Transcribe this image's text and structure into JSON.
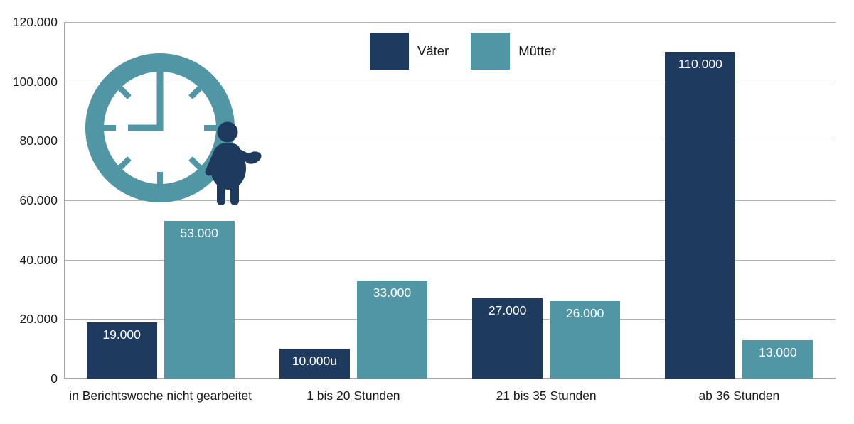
{
  "chart_data": {
    "type": "bar",
    "title": "",
    "categories": [
      "in Berichtswoche nicht gearbeitet",
      "1 bis 20 Stunden",
      "21 bis 35 Stunden",
      "ab 36 Stunden"
    ],
    "series": [
      {
        "name": "Väter",
        "color": "#1e3a5e",
        "values": [
          19000,
          10000,
          27000,
          110000
        ],
        "labels": [
          "19.000",
          "10.000u",
          "27.000",
          "110.000"
        ]
      },
      {
        "name": "Mütter",
        "color": "#5096a5",
        "values": [
          53000,
          33000,
          26000,
          13000
        ],
        "labels": [
          "53.000",
          "33.000",
          "26.000",
          "13.000"
        ]
      }
    ],
    "xlabel": "",
    "ylabel": "",
    "ylim": [
      0,
      120000
    ],
    "ytick_interval": 20000,
    "ytick_labels": [
      "0",
      "20.000",
      "40.000",
      "60.000",
      "80.000",
      "100.000",
      "120.000"
    ],
    "grid": "horizontal",
    "legend_position": "top-center",
    "bar_label_color": "#ffffff"
  },
  "legend": {
    "items": [
      {
        "label": "Väter",
        "color": "#1e3a5e"
      },
      {
        "label": "Mütter",
        "color": "#5096a5"
      }
    ]
  },
  "decoration": {
    "clock_time": "9:00",
    "clock_color": "#5096a5",
    "person_color": "#1e3a5e"
  },
  "colors": {
    "gridline": "#b3b3b3",
    "axis": "#a6a6a6",
    "text": "#1a1a1a",
    "background": "#ffffff"
  }
}
